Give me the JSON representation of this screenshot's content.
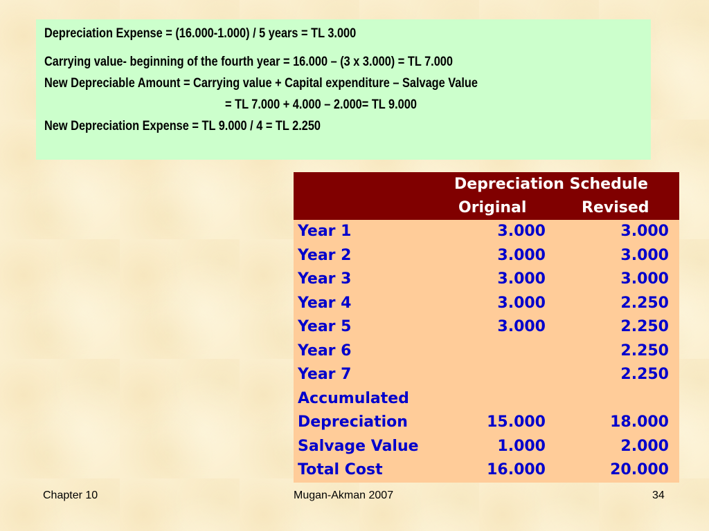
{
  "formulas": [
    "Depreciation Expense = (16.000-1.000) / 5 years = TL 3.000",
    "Carrying value- beginning of the fourth year = 16.000 – (3 x 3.000) =  TL 7.000",
    "New Depreciable Amount = Carrying value + Capital expenditure –  Salvage Value",
    "= TL 7.000 + 4.000 – 2.000= TL 9.000",
    "New Depreciation Expense = TL 9.000 / 4 = TL 2.250"
  ],
  "schedule": {
    "title": "Depreciation Schedule",
    "col_original": "Original",
    "col_revised": "Revised",
    "rows": [
      {
        "label": "Year 1",
        "original": "3.000",
        "revised": "3.000"
      },
      {
        "label": "Year 2",
        "original": "3.000",
        "revised": "3.000"
      },
      {
        "label": "Year 3",
        "original": "3.000",
        "revised": "3.000"
      },
      {
        "label": "Year 4",
        "original": "3.000",
        "revised": "2.250"
      },
      {
        "label": "Year 5",
        "original": "3.000",
        "revised": "2.250"
      },
      {
        "label": "Year 6",
        "original": "",
        "revised": "2.250"
      },
      {
        "label": "Year 7",
        "original": "",
        "revised": "2.250"
      },
      {
        "label": "Accumulated",
        "original": "",
        "revised": ""
      },
      {
        "label": "Depreciation",
        "original": "15.000",
        "revised": "18.000"
      },
      {
        "label": "Salvage Value",
        "original": "1.000",
        "revised": "2.000"
      },
      {
        "label": "Total Cost",
        "original": "16.000",
        "revised": "20.000"
      }
    ]
  },
  "footer": {
    "chapter": "Chapter 10",
    "author": "Mugan-Akman 2007",
    "page": "34"
  },
  "colors": {
    "background": "#fbefcf",
    "formula_box": "#ccffcc",
    "table_header": "#800000",
    "table_body": "#ffcc99",
    "table_text": "#0000cc"
  }
}
